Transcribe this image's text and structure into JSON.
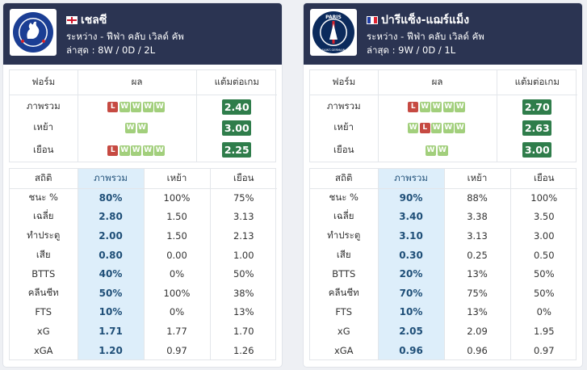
{
  "colors": {
    "header_bg": "#2b3452",
    "win": "#a2cf7c",
    "loss": "#c64a42",
    "ppg_badge": "#2f7d4b",
    "highlight_col": "#ddeefa"
  },
  "headers": {
    "form": {
      "label": "ฟอร์ม",
      "result": "ผล",
      "ppg": "แต้มต่อเกม"
    },
    "stats": {
      "stat": "สถิติ",
      "overall": "ภาพรวม",
      "home": "เหย้า",
      "away": "เยือน"
    }
  },
  "teams": [
    {
      "name": "เชลซี",
      "flag": "england-flag",
      "crest": "chelsea-crest",
      "crest_text": "CHELSEA FOOTBALL CLUB",
      "competition": "ระหว่าง - ฟีฟ่า คลับ เวิลด์ คัพ",
      "recent": "ล่าสุด : 8W / 0D / 2L",
      "form": [
        {
          "label": "ภาพรวม",
          "results": [
            "L",
            "W",
            "W",
            "W",
            "W"
          ],
          "ppg": "2.40"
        },
        {
          "label": "เหย้า",
          "results": [
            "W",
            "W"
          ],
          "ppg": "3.00"
        },
        {
          "label": "เยือน",
          "results": [
            "L",
            "W",
            "W",
            "W",
            "W"
          ],
          "ppg": "2.25"
        }
      ],
      "stats": [
        {
          "label": "ชนะ %",
          "overall": "80%",
          "home": "100%",
          "away": "75%"
        },
        {
          "label": "เฉลี่ย",
          "overall": "2.80",
          "home": "1.50",
          "away": "3.13"
        },
        {
          "label": "ทำประตู",
          "overall": "2.00",
          "home": "1.50",
          "away": "2.13"
        },
        {
          "label": "เสีย",
          "overall": "0.80",
          "home": "0.00",
          "away": "1.00"
        },
        {
          "label": "BTTS",
          "overall": "40%",
          "home": "0%",
          "away": "50%"
        },
        {
          "label": "คลีนชีท",
          "overall": "50%",
          "home": "100%",
          "away": "38%"
        },
        {
          "label": "FTS",
          "overall": "10%",
          "home": "0%",
          "away": "13%"
        },
        {
          "label": "xG",
          "overall": "1.71",
          "home": "1.77",
          "away": "1.70"
        },
        {
          "label": "xGA",
          "overall": "1.20",
          "home": "0.97",
          "away": "1.26"
        }
      ]
    },
    {
      "name": "ปารีแซ็ง-แฌร์แม็ง",
      "flag": "france-flag",
      "crest": "psg-crest",
      "crest_text": "PARIS",
      "crest_text2": "SAINT-GERMAIN",
      "competition": "ระหว่าง - ฟีฟ่า คลับ เวิลด์ คัพ",
      "recent": "ล่าสุด : 9W / 0D / 1L",
      "form": [
        {
          "label": "ภาพรวม",
          "results": [
            "L",
            "W",
            "W",
            "W",
            "W"
          ],
          "ppg": "2.70"
        },
        {
          "label": "เหย้า",
          "results": [
            "W",
            "L",
            "W",
            "W",
            "W"
          ],
          "ppg": "2.63"
        },
        {
          "label": "เยือน",
          "results": [
            "W",
            "W"
          ],
          "ppg": "3.00"
        }
      ],
      "stats": [
        {
          "label": "ชนะ %",
          "overall": "90%",
          "home": "88%",
          "away": "100%"
        },
        {
          "label": "เฉลี่ย",
          "overall": "3.40",
          "home": "3.38",
          "away": "3.50"
        },
        {
          "label": "ทำประตู",
          "overall": "3.10",
          "home": "3.13",
          "away": "3.00"
        },
        {
          "label": "เสีย",
          "overall": "0.30",
          "home": "0.25",
          "away": "0.50"
        },
        {
          "label": "BTTS",
          "overall": "20%",
          "home": "13%",
          "away": "50%"
        },
        {
          "label": "คลีนชีท",
          "overall": "70%",
          "home": "75%",
          "away": "50%"
        },
        {
          "label": "FTS",
          "overall": "10%",
          "home": "13%",
          "away": "0%"
        },
        {
          "label": "xG",
          "overall": "2.05",
          "home": "2.09",
          "away": "1.95"
        },
        {
          "label": "xGA",
          "overall": "0.96",
          "home": "0.96",
          "away": "0.97"
        }
      ]
    }
  ]
}
